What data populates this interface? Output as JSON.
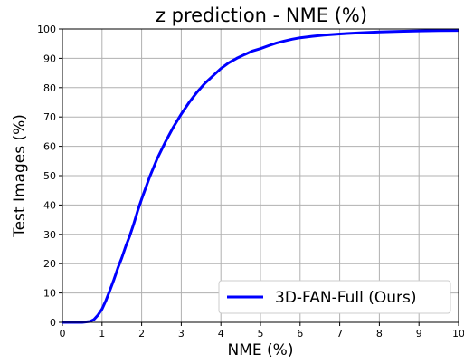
{
  "chart_data": {
    "type": "line",
    "title": "z prediction - NME (%)",
    "xlabel": "NME (%)",
    "ylabel": "Test Images (%)",
    "xlim": [
      0,
      10
    ],
    "ylim": [
      0,
      100
    ],
    "xticks": [
      "0",
      "1",
      "2",
      "3",
      "4",
      "5",
      "6",
      "7",
      "8",
      "9",
      "10"
    ],
    "yticks": [
      "0",
      "10",
      "20",
      "30",
      "40",
      "50",
      "60",
      "70",
      "80",
      "90",
      "100"
    ],
    "grid": true,
    "legend_position": "bottom-right",
    "series": [
      {
        "name": "3D-FAN-Full (Ours)",
        "color": "#0000ff",
        "x": [
          0,
          0.5,
          0.7,
          0.8,
          0.9,
          1.0,
          1.1,
          1.2,
          1.3,
          1.4,
          1.5,
          1.6,
          1.7,
          1.8,
          1.9,
          2.0,
          2.2,
          2.4,
          2.6,
          2.8,
          3.0,
          3.2,
          3.4,
          3.6,
          3.8,
          4.0,
          4.2,
          4.4,
          4.6,
          4.8,
          5.0,
          5.2,
          5.4,
          5.6,
          5.8,
          6.0,
          6.3,
          6.6,
          7.0,
          7.5,
          8.0,
          8.5,
          9.0,
          9.5,
          10.0
        ],
        "y": [
          0,
          0,
          0.3,
          1,
          2.5,
          4.5,
          7.5,
          11,
          14.5,
          18.5,
          22,
          26,
          29.5,
          33.5,
          38,
          42,
          49.5,
          56,
          61.5,
          66.5,
          71,
          75,
          78.5,
          81.5,
          84,
          86.5,
          88.5,
          90,
          91.3,
          92.5,
          93.3,
          94.3,
          95.2,
          95.9,
          96.5,
          97,
          97.5,
          97.9,
          98.3,
          98.7,
          99,
          99.2,
          99.35,
          99.45,
          99.5
        ]
      }
    ]
  }
}
